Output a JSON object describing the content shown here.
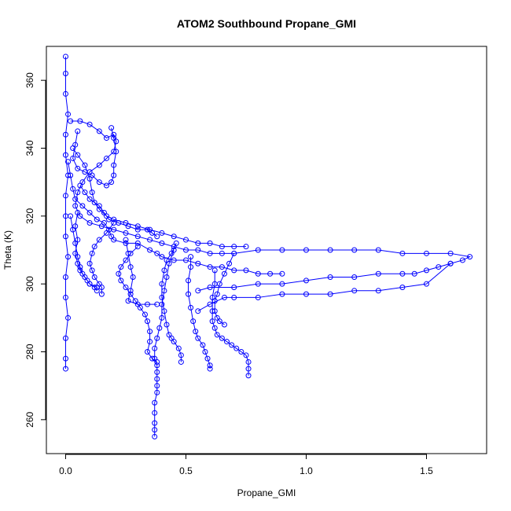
{
  "chart_data": {
    "type": "scatter",
    "title": "ATOM2 Southbound Propane_GMI",
    "xlabel": "Propane_GMI",
    "ylabel": "Theta (K)",
    "xlim": [
      -0.08,
      1.75
    ],
    "ylim": [
      250,
      370
    ],
    "x_ticks": [
      0.0,
      0.5,
      1.0,
      1.5
    ],
    "x_tick_labels": [
      "0.0",
      "0.5",
      "1.0",
      "1.5"
    ],
    "y_ticks": [
      260,
      280,
      300,
      320,
      340,
      360
    ],
    "y_tick_labels": [
      "260",
      "280",
      "300",
      "320",
      "340",
      "360"
    ],
    "marker": "open-circle",
    "connected": true,
    "color": "#0000ff",
    "grid": false,
    "series": [
      {
        "points": [
          [
            0.0,
            367
          ],
          [
            0.0,
            362
          ],
          [
            0.0,
            356
          ],
          [
            0.01,
            350
          ],
          [
            0.0,
            344
          ],
          [
            0.0,
            338
          ],
          [
            0.01,
            332
          ],
          [
            0.0,
            326
          ],
          [
            0.0,
            320
          ],
          [
            0.0,
            314
          ],
          [
            0.01,
            308
          ],
          [
            0.0,
            302
          ],
          [
            0.0,
            296
          ],
          [
            0.01,
            290
          ],
          [
            0.0,
            284
          ],
          [
            0.0,
            278
          ],
          [
            0.0,
            275
          ]
        ]
      },
      {
        "points": [
          [
            0.02,
            348
          ],
          [
            0.06,
            348
          ],
          [
            0.1,
            347
          ],
          [
            0.14,
            345
          ],
          [
            0.17,
            343
          ],
          [
            0.2,
            344
          ],
          [
            0.21,
            342
          ],
          [
            0.2,
            339
          ],
          [
            0.17,
            337
          ],
          [
            0.14,
            335
          ],
          [
            0.1,
            333
          ],
          [
            0.07,
            330
          ],
          [
            0.05,
            327
          ],
          [
            0.04,
            323
          ],
          [
            0.06,
            320
          ],
          [
            0.1,
            318
          ],
          [
            0.15,
            317
          ],
          [
            0.2,
            316
          ],
          [
            0.25,
            315
          ],
          [
            0.3,
            314
          ],
          [
            0.35,
            313
          ],
          [
            0.4,
            312
          ],
          [
            0.45,
            311
          ],
          [
            0.5,
            310
          ],
          [
            0.55,
            310
          ],
          [
            0.6,
            309
          ],
          [
            0.65,
            309
          ],
          [
            0.7,
            309
          ],
          [
            0.8,
            310
          ],
          [
            0.9,
            310
          ],
          [
            1.0,
            310
          ],
          [
            1.1,
            310
          ],
          [
            1.2,
            310
          ],
          [
            1.3,
            310
          ],
          [
            1.4,
            309
          ],
          [
            1.5,
            309
          ],
          [
            1.6,
            309
          ],
          [
            1.68,
            308
          ],
          [
            1.65,
            307
          ],
          [
            1.6,
            306
          ],
          [
            1.55,
            305
          ],
          [
            1.5,
            304
          ],
          [
            1.45,
            303
          ],
          [
            1.4,
            303
          ],
          [
            1.3,
            303
          ],
          [
            1.2,
            302
          ],
          [
            1.1,
            302
          ],
          [
            1.0,
            301
          ],
          [
            0.9,
            300
          ],
          [
            0.8,
            300
          ],
          [
            0.7,
            299
          ],
          [
            0.6,
            299
          ],
          [
            0.55,
            298
          ]
        ]
      },
      {
        "points": [
          [
            1.6,
            306
          ],
          [
            1.5,
            300
          ],
          [
            1.4,
            299
          ],
          [
            1.3,
            298
          ],
          [
            1.2,
            298
          ],
          [
            1.1,
            297
          ],
          [
            1.0,
            297
          ],
          [
            0.9,
            297
          ],
          [
            0.8,
            296
          ],
          [
            0.7,
            296
          ],
          [
            0.66,
            296
          ],
          [
            0.6,
            294
          ],
          [
            0.55,
            292
          ]
        ]
      },
      {
        "points": [
          [
            0.46,
            312
          ],
          [
            0.44,
            309
          ],
          [
            0.42,
            307
          ],
          [
            0.41,
            304
          ],
          [
            0.4,
            300
          ],
          [
            0.4,
            296
          ],
          [
            0.41,
            292
          ],
          [
            0.42,
            288
          ],
          [
            0.43,
            285
          ],
          [
            0.44,
            284
          ],
          [
            0.45,
            283
          ],
          [
            0.47,
            281
          ],
          [
            0.48,
            279
          ],
          [
            0.48,
            277
          ]
        ]
      },
      {
        "points": [
          [
            0.45,
            310
          ],
          [
            0.43,
            306
          ],
          [
            0.42,
            302
          ],
          [
            0.41,
            298
          ],
          [
            0.4,
            294
          ],
          [
            0.4,
            290
          ],
          [
            0.39,
            287
          ],
          [
            0.38,
            284
          ],
          [
            0.37,
            281
          ],
          [
            0.37,
            278
          ],
          [
            0.38,
            276
          ],
          [
            0.38,
            274
          ],
          [
            0.38,
            272
          ],
          [
            0.38,
            270
          ],
          [
            0.38,
            268
          ],
          [
            0.37,
            265
          ],
          [
            0.37,
            262
          ],
          [
            0.37,
            259
          ],
          [
            0.37,
            257
          ],
          [
            0.37,
            255
          ]
        ]
      },
      {
        "points": [
          [
            0.3,
            311
          ],
          [
            0.27,
            309
          ],
          [
            0.25,
            307
          ],
          [
            0.23,
            305
          ],
          [
            0.22,
            303
          ],
          [
            0.23,
            301
          ],
          [
            0.25,
            299
          ],
          [
            0.27,
            297
          ],
          [
            0.29,
            295
          ],
          [
            0.31,
            293
          ],
          [
            0.33,
            291
          ],
          [
            0.34,
            289
          ],
          [
            0.35,
            286
          ],
          [
            0.35,
            283
          ],
          [
            0.34,
            280
          ],
          [
            0.36,
            278
          ],
          [
            0.38,
            277
          ]
        ]
      },
      {
        "points": [
          [
            0.52,
            308
          ],
          [
            0.52,
            305
          ],
          [
            0.51,
            301
          ],
          [
            0.51,
            297
          ],
          [
            0.52,
            293
          ],
          [
            0.53,
            289
          ],
          [
            0.54,
            286
          ],
          [
            0.55,
            284
          ],
          [
            0.57,
            282
          ],
          [
            0.58,
            280
          ],
          [
            0.59,
            278
          ],
          [
            0.6,
            276
          ],
          [
            0.6,
            275
          ]
        ]
      },
      {
        "points": [
          [
            0.62,
            304
          ],
          [
            0.62,
            300
          ],
          [
            0.61,
            296
          ],
          [
            0.61,
            292
          ],
          [
            0.61,
            289
          ],
          [
            0.62,
            287
          ],
          [
            0.63,
            285
          ],
          [
            0.65,
            284
          ],
          [
            0.67,
            283
          ],
          [
            0.69,
            282
          ],
          [
            0.71,
            281
          ],
          [
            0.73,
            280
          ],
          [
            0.75,
            279
          ],
          [
            0.76,
            277
          ],
          [
            0.76,
            275
          ],
          [
            0.76,
            273
          ]
        ]
      },
      {
        "points": [
          [
            0.2,
            318
          ],
          [
            0.17,
            315
          ],
          [
            0.14,
            313
          ],
          [
            0.12,
            311
          ],
          [
            0.11,
            309
          ],
          [
            0.1,
            306
          ],
          [
            0.11,
            304
          ],
          [
            0.12,
            302
          ],
          [
            0.14,
            300
          ],
          [
            0.15,
            299
          ],
          [
            0.15,
            297
          ]
        ]
      },
      {
        "points": [
          [
            0.05,
            321
          ],
          [
            0.04,
            317
          ],
          [
            0.05,
            313
          ],
          [
            0.04,
            309
          ],
          [
            0.05,
            306
          ],
          [
            0.06,
            304
          ],
          [
            0.08,
            302
          ],
          [
            0.1,
            300
          ],
          [
            0.12,
            299
          ],
          [
            0.13,
            298
          ]
        ]
      },
      {
        "points": [
          [
            0.05,
            345
          ],
          [
            0.04,
            341
          ],
          [
            0.03,
            337
          ],
          [
            0.05,
            334
          ],
          [
            0.08,
            333
          ],
          [
            0.11,
            332
          ],
          [
            0.14,
            330
          ],
          [
            0.17,
            329
          ],
          [
            0.19,
            330
          ],
          [
            0.2,
            332
          ],
          [
            0.2,
            335
          ],
          [
            0.21,
            339
          ],
          [
            0.2,
            343
          ],
          [
            0.19,
            346
          ]
        ]
      },
      {
        "points": [
          [
            0.03,
            340
          ],
          [
            0.05,
            338
          ],
          [
            0.08,
            335
          ],
          [
            0.1,
            331
          ],
          [
            0.11,
            327
          ],
          [
            0.12,
            324
          ],
          [
            0.14,
            322
          ],
          [
            0.17,
            320
          ],
          [
            0.2,
            319
          ],
          [
            0.25,
            318
          ],
          [
            0.3,
            317
          ],
          [
            0.35,
            316
          ],
          [
            0.4,
            315
          ],
          [
            0.45,
            314
          ],
          [
            0.5,
            313
          ],
          [
            0.55,
            312
          ],
          [
            0.6,
            312
          ],
          [
            0.65,
            311
          ],
          [
            0.7,
            311
          ],
          [
            0.75,
            311
          ]
        ]
      },
      {
        "points": [
          [
            0.01,
            336
          ],
          [
            0.02,
            332
          ],
          [
            0.03,
            328
          ],
          [
            0.04,
            325
          ],
          [
            0.07,
            323
          ],
          [
            0.1,
            321
          ],
          [
            0.13,
            319
          ],
          [
            0.16,
            318
          ],
          [
            0.18,
            316
          ],
          [
            0.19,
            314
          ],
          [
            0.2,
            313
          ],
          [
            0.25,
            312
          ],
          [
            0.3,
            312
          ],
          [
            0.35,
            310
          ],
          [
            0.38,
            309
          ],
          [
            0.4,
            308
          ],
          [
            0.45,
            307
          ],
          [
            0.5,
            307
          ],
          [
            0.55,
            306
          ],
          [
            0.6,
            305
          ],
          [
            0.65,
            305
          ],
          [
            0.7,
            304
          ],
          [
            0.75,
            304
          ],
          [
            0.8,
            303
          ],
          [
            0.85,
            303
          ],
          [
            0.9,
            303
          ]
        ]
      },
      {
        "points": [
          [
            0.06,
            329
          ],
          [
            0.08,
            327
          ],
          [
            0.1,
            325
          ],
          [
            0.14,
            323
          ],
          [
            0.16,
            321
          ],
          [
            0.18,
            319
          ],
          [
            0.22,
            318
          ],
          [
            0.26,
            317
          ],
          [
            0.3,
            316
          ],
          [
            0.34,
            316
          ],
          [
            0.36,
            315
          ],
          [
            0.38,
            314
          ]
        ]
      },
      {
        "points": [
          [
            0.25,
            313
          ],
          [
            0.26,
            309
          ],
          [
            0.27,
            305
          ],
          [
            0.28,
            302
          ],
          [
            0.27,
            298
          ],
          [
            0.26,
            295
          ],
          [
            0.3,
            294
          ],
          [
            0.34,
            294
          ],
          [
            0.38,
            294
          ]
        ]
      },
      {
        "points": [
          [
            0.7,
            309
          ],
          [
            0.68,
            306
          ],
          [
            0.66,
            303
          ],
          [
            0.64,
            300
          ],
          [
            0.63,
            297
          ],
          [
            0.62,
            295
          ],
          [
            0.62,
            292
          ],
          [
            0.63,
            290
          ],
          [
            0.64,
            289
          ],
          [
            0.66,
            288
          ]
        ]
      },
      {
        "points": [
          [
            0.02,
            320
          ],
          [
            0.03,
            316
          ],
          [
            0.04,
            312
          ],
          [
            0.05,
            308
          ],
          [
            0.06,
            305
          ],
          [
            0.07,
            303
          ],
          [
            0.09,
            301
          ],
          [
            0.1,
            300
          ],
          [
            0.13,
            299
          ]
        ]
      }
    ]
  }
}
